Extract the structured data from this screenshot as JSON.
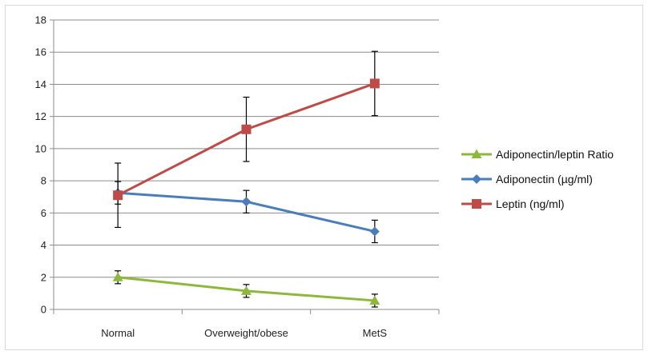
{
  "chart_data": {
    "type": "line",
    "title": "",
    "xlabel": "",
    "ylabel": "",
    "categories": [
      "Normal",
      "Overweight/obese",
      "MetS"
    ],
    "ylim": [
      0,
      18
    ],
    "yticks": [
      0,
      2,
      4,
      6,
      8,
      10,
      12,
      14,
      16,
      18
    ],
    "grid": true,
    "legend_position": "right",
    "series": [
      {
        "name": "Adiponectin/leptin Ratio",
        "values": [
          2.0,
          1.15,
          0.55
        ],
        "errors": [
          0.4,
          0.4,
          0.4
        ],
        "color": "#8DB83D",
        "marker": "triangle"
      },
      {
        "name": "Adiponectin (µg/ml)",
        "values": [
          7.25,
          6.7,
          4.85
        ],
        "errors": [
          0.7,
          0.7,
          0.7
        ],
        "color": "#4A7EBB",
        "marker": "diamond"
      },
      {
        "name": "Leptin (ng/ml)",
        "values": [
          7.1,
          11.2,
          14.05
        ],
        "errors": [
          2.0,
          2.0,
          2.0
        ],
        "color": "#BE4B48",
        "marker": "square"
      }
    ]
  }
}
